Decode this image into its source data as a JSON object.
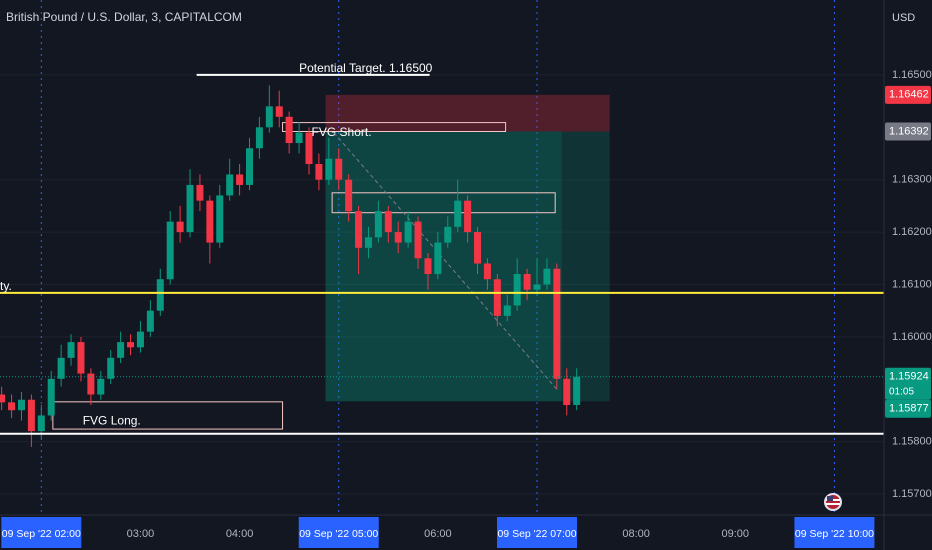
{
  "chart_data": {
    "type": "candlestick",
    "title": "British Pound / U.S. Dollar, 3, CAPITALCOM",
    "currency": "USD",
    "up_color": "#089981",
    "down_color": "#f23645",
    "xlim": [
      "01:35",
      "10:30"
    ],
    "ylim": [
      1.1566,
      1.16643
    ],
    "xticks": [
      {
        "value": "02:00",
        "label": "09 Sep '22  02:00"
      },
      "03:00",
      "04:00",
      {
        "value": "05:00",
        "label": "09 Sep '22  05:00"
      },
      "06:00",
      {
        "value": "07:00",
        "label": "09 Sep '22  07:00"
      },
      "08:00",
      "09:00",
      {
        "value": "10:00",
        "label": "09 Sep '22  10:00"
      }
    ],
    "yticks": [
      {
        "value": 1.165,
        "label": "1.16500"
      },
      {
        "value": 1.163,
        "label": "1.16300"
      },
      {
        "value": 1.162,
        "label": "1.16200"
      },
      {
        "value": 1.161,
        "label": "1.16100"
      },
      {
        "value": 1.16,
        "label": "1.16000"
      },
      {
        "value": 1.158,
        "label": "1.15800"
      },
      {
        "value": 1.157,
        "label": "1.15700"
      }
    ],
    "x": [
      "01:36",
      "01:42",
      "01:48",
      "01:54",
      "02:00",
      "02:06",
      "02:12",
      "02:18",
      "02:24",
      "02:30",
      "02:36",
      "02:42",
      "02:48",
      "02:54",
      "03:00",
      "03:06",
      "03:12",
      "03:18",
      "03:24",
      "03:30",
      "03:36",
      "03:42",
      "03:48",
      "03:54",
      "04:00",
      "04:06",
      "04:12",
      "04:18",
      "04:24",
      "04:30",
      "04:36",
      "04:42",
      "04:48",
      "04:54",
      "05:00",
      "05:06",
      "05:12",
      "05:18",
      "05:24",
      "05:30",
      "05:36",
      "05:42",
      "05:48",
      "05:54",
      "06:00",
      "06:06",
      "06:12",
      "06:18",
      "06:24",
      "06:30",
      "06:36",
      "06:42",
      "06:48",
      "06:54",
      "07:00",
      "07:06",
      "07:12",
      "07:18",
      "07:24"
    ],
    "open": [
      1.1589,
      1.15875,
      1.1586,
      1.1588,
      1.1582,
      1.1585,
      1.1592,
      1.1596,
      1.1599,
      1.1593,
      1.1589,
      1.1592,
      1.1596,
      1.1599,
      1.1598,
      1.1601,
      1.1605,
      1.1611,
      1.1622,
      1.162,
      1.1629,
      1.1626,
      1.1618,
      1.1627,
      1.1631,
      1.1629,
      1.1636,
      1.164,
      1.1644,
      1.1642,
      1.1637,
      1.1639,
      1.1633,
      1.163,
      1.1634,
      1.163,
      1.1624,
      1.1617,
      1.1619,
      1.1624,
      1.162,
      1.1618,
      1.1622,
      1.1615,
      1.1612,
      1.1618,
      1.1621,
      1.1626,
      1.162,
      1.1614,
      1.1611,
      1.1604,
      1.1606,
      1.1612,
      1.1609,
      1.161,
      1.1613,
      1.1592,
      1.1587
    ],
    "high": [
      1.15905,
      1.1589,
      1.15895,
      1.1589,
      1.1587,
      1.15935,
      1.15985,
      1.16005,
      1.16,
      1.1594,
      1.15935,
      1.15975,
      1.1601,
      1.16005,
      1.1603,
      1.1607,
      1.1613,
      1.1624,
      1.1625,
      1.1632,
      1.1631,
      1.1627,
      1.1629,
      1.1634,
      1.1633,
      1.1638,
      1.1642,
      1.1648,
      1.1647,
      1.1643,
      1.1641,
      1.164,
      1.1635,
      1.1638,
      1.1636,
      1.1631,
      1.1625,
      1.1621,
      1.1626,
      1.1625,
      1.1622,
      1.1624,
      1.1623,
      1.1616,
      1.162,
      1.1623,
      1.163,
      1.1627,
      1.1621,
      1.1615,
      1.1612,
      1.1608,
      1.1615,
      1.1613,
      1.1615,
      1.1615,
      1.1614,
      1.1594,
      1.1594
    ],
    "low": [
      1.1586,
      1.15845,
      1.1584,
      1.1579,
      1.15805,
      1.1584,
      1.15905,
      1.15945,
      1.15915,
      1.1587,
      1.1588,
      1.1591,
      1.1595,
      1.15965,
      1.1597,
      1.16,
      1.1604,
      1.161,
      1.1618,
      1.1619,
      1.1624,
      1.1614,
      1.1617,
      1.1626,
      1.1627,
      1.1628,
      1.1634,
      1.1639,
      1.164,
      1.1635,
      1.1635,
      1.1631,
      1.1628,
      1.1629,
      1.1628,
      1.1622,
      1.1612,
      1.1615,
      1.1618,
      1.1618,
      1.1616,
      1.1617,
      1.1613,
      1.1609,
      1.1611,
      1.1617,
      1.162,
      1.1618,
      1.1612,
      1.1609,
      1.1602,
      1.1603,
      1.1605,
      1.1607,
      1.1608,
      1.1609,
      1.159,
      1.1585,
      1.1586
    ],
    "close": [
      1.15875,
      1.1586,
      1.1588,
      1.1582,
      1.1585,
      1.1592,
      1.1596,
      1.1599,
      1.1593,
      1.1589,
      1.1592,
      1.1596,
      1.1599,
      1.1598,
      1.1601,
      1.1605,
      1.1611,
      1.1622,
      1.162,
      1.1629,
      1.1626,
      1.1618,
      1.1627,
      1.1631,
      1.1629,
      1.1636,
      1.164,
      1.1644,
      1.1642,
      1.1637,
      1.1639,
      1.1633,
      1.163,
      1.1634,
      1.163,
      1.1624,
      1.1617,
      1.1619,
      1.1624,
      1.162,
      1.1618,
      1.1622,
      1.1615,
      1.1612,
      1.1618,
      1.1621,
      1.1626,
      1.162,
      1.1614,
      1.1611,
      1.1604,
      1.1606,
      1.1612,
      1.1609,
      1.161,
      1.1613,
      1.1592,
      1.1587,
      1.15924
    ],
    "annotations": [
      {
        "kind": "box",
        "x": [
          "04:52",
          "07:44"
        ],
        "y": [
          1.16392,
          1.16462
        ],
        "fill": "rgba(242,54,69,0.28)"
      },
      {
        "kind": "box",
        "x": [
          "04:52",
          "07:44"
        ],
        "y": [
          1.15877,
          1.16392
        ],
        "fill": "rgba(8,153,129,0.22)"
      },
      {
        "kind": "box",
        "x": [
          "04:52",
          "07:15"
        ],
        "y": [
          1.15877,
          1.16392
        ],
        "fill": "rgba(8,153,129,0.18)"
      },
      {
        "kind": "box",
        "text": "FVG Short.",
        "x": [
          "04:26",
          "06:41"
        ],
        "y": [
          1.16392,
          1.16409
        ],
        "stroke": "#f7c6c6"
      },
      {
        "kind": "box",
        "x": [
          "04:56",
          "07:11"
        ],
        "y": [
          1.16237,
          1.16275
        ],
        "stroke": "#f7c6c6"
      },
      {
        "kind": "box",
        "text": "FVG Long.",
        "x": [
          "02:07",
          "04:26"
        ],
        "y": [
          1.15824,
          1.15876
        ],
        "stroke": "#f7c6c6"
      },
      {
        "kind": "trend",
        "x": [
          "04:57",
          "07:12"
        ],
        "y": [
          1.1639,
          1.159
        ],
        "color": "#787b86"
      },
      {
        "kind": "hline",
        "text": "Potential Target. 1.16500",
        "x": [
          "03:34",
          "05:55"
        ],
        "y": 1.165,
        "color": "#ffffff"
      },
      {
        "kind": "hline",
        "text": "ty.",
        "y": 1.16084,
        "color": "#ffeb3b"
      },
      {
        "kind": "hline",
        "y": 1.15815,
        "color": "#ffffff"
      }
    ],
    "price_labels": [
      {
        "value": 1.16462,
        "label": "1.16462",
        "color": "#f23645"
      },
      {
        "value": 1.16392,
        "label": "1.16392",
        "color": "#787b86"
      },
      {
        "value": 1.15924,
        "label": "1.15924",
        "countdown": "01:05",
        "color": "#089981"
      },
      {
        "value": 1.15877,
        "label": "1.15877",
        "color": "#089981"
      }
    ]
  }
}
